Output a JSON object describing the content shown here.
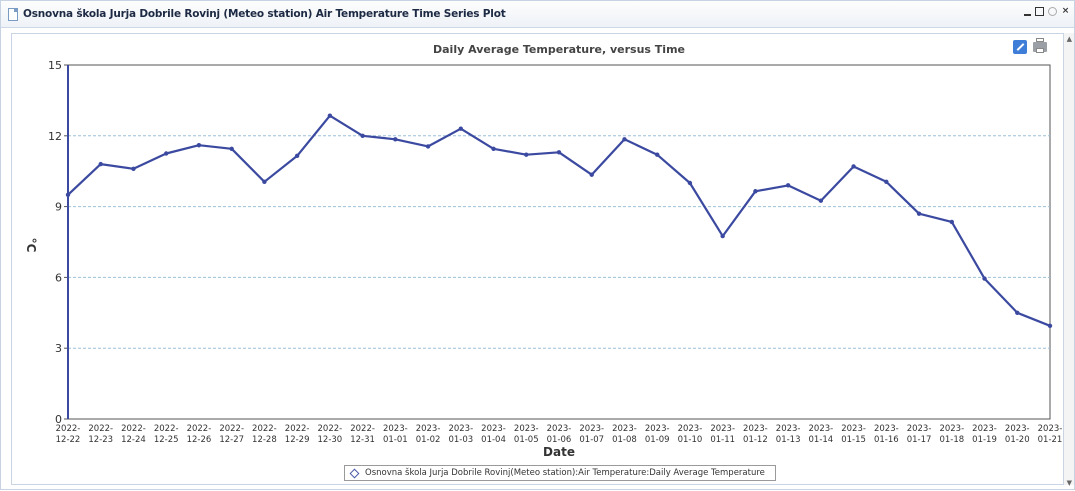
{
  "window": {
    "title": "Osnovna škola Jurja Dobrile Rovinj (Meteo station) Air Temperature Time Series Plot",
    "controls": [
      "minimize",
      "maximize",
      "refresh",
      "close"
    ]
  },
  "chart_data": {
    "type": "line",
    "title": "Daily Average Temperature, versus Time",
    "xlabel": "Date",
    "ylabel": "°C",
    "ylim": [
      0,
      15
    ],
    "yticks": [
      0,
      3,
      6,
      9,
      12,
      15
    ],
    "grid": true,
    "legend_placement": "bottom-center",
    "series": [
      {
        "name": "Osnovna škola Jurja Dobrile Rovinj(Meteo station):Air Temperature:Daily Average Temperature",
        "color": "#3b4aa0",
        "x": [
          "2022-12-22",
          "2022-12-23",
          "2022-12-24",
          "2022-12-25",
          "2022-12-26",
          "2022-12-27",
          "2022-12-28",
          "2022-12-29",
          "2022-12-30",
          "2022-12-31",
          "2023-01-01",
          "2023-01-02",
          "2023-01-03",
          "2023-01-04",
          "2023-01-05",
          "2023-01-06",
          "2023-01-07",
          "2023-01-08",
          "2023-01-09",
          "2023-01-10",
          "2023-01-11",
          "2023-01-12",
          "2023-01-13",
          "2023-01-14",
          "2023-01-15",
          "2023-01-16",
          "2023-01-17",
          "2023-01-18",
          "2023-01-19",
          "2023-01-20",
          "2023-01-21"
        ],
        "values": [
          9.5,
          10.8,
          10.6,
          11.25,
          11.6,
          11.45,
          10.05,
          11.15,
          12.85,
          12.0,
          11.85,
          11.55,
          12.3,
          11.45,
          11.2,
          11.3,
          10.35,
          11.85,
          11.2,
          10.0,
          7.75,
          9.65,
          9.9,
          9.25,
          10.7,
          10.05,
          8.7,
          8.35,
          5.95,
          4.5,
          3.95
        ]
      }
    ]
  }
}
